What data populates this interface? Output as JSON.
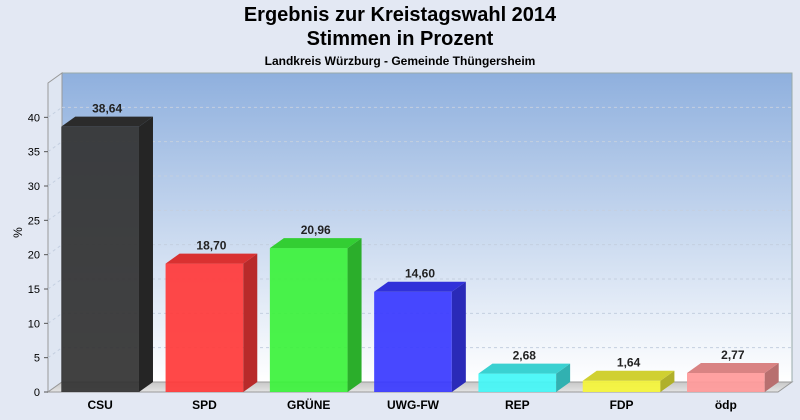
{
  "chart_data": {
    "type": "bar",
    "title": "Ergebnis zur Kreistagswahl 2014",
    "subtitle": "Stimmen in Prozent",
    "subtitle2": "Landkreis Würzburg - Gemeinde Thüngersheim",
    "ylabel": "%",
    "ylim": [
      0,
      45
    ],
    "yticks": [
      "0",
      "5",
      "10",
      "15",
      "20",
      "25",
      "30",
      "35",
      "40"
    ],
    "grid": true,
    "categories": [
      "CSU",
      "SPD",
      "GRÜNE",
      "UWG-FW",
      "REP",
      "FDP",
      "ödp"
    ],
    "values": [
      38.64,
      18.7,
      20.96,
      14.6,
      2.68,
      1.64,
      2.77
    ],
    "value_labels": [
      "38,64",
      "18,70",
      "20,96",
      "14,60",
      "2,68",
      "1,64",
      "2,77"
    ],
    "colors": [
      "#333333",
      "#ff3a3a",
      "#3cf23c",
      "#3a3aff",
      "#44f6f6",
      "#f5f53a",
      "#ff9a9a"
    ]
  }
}
